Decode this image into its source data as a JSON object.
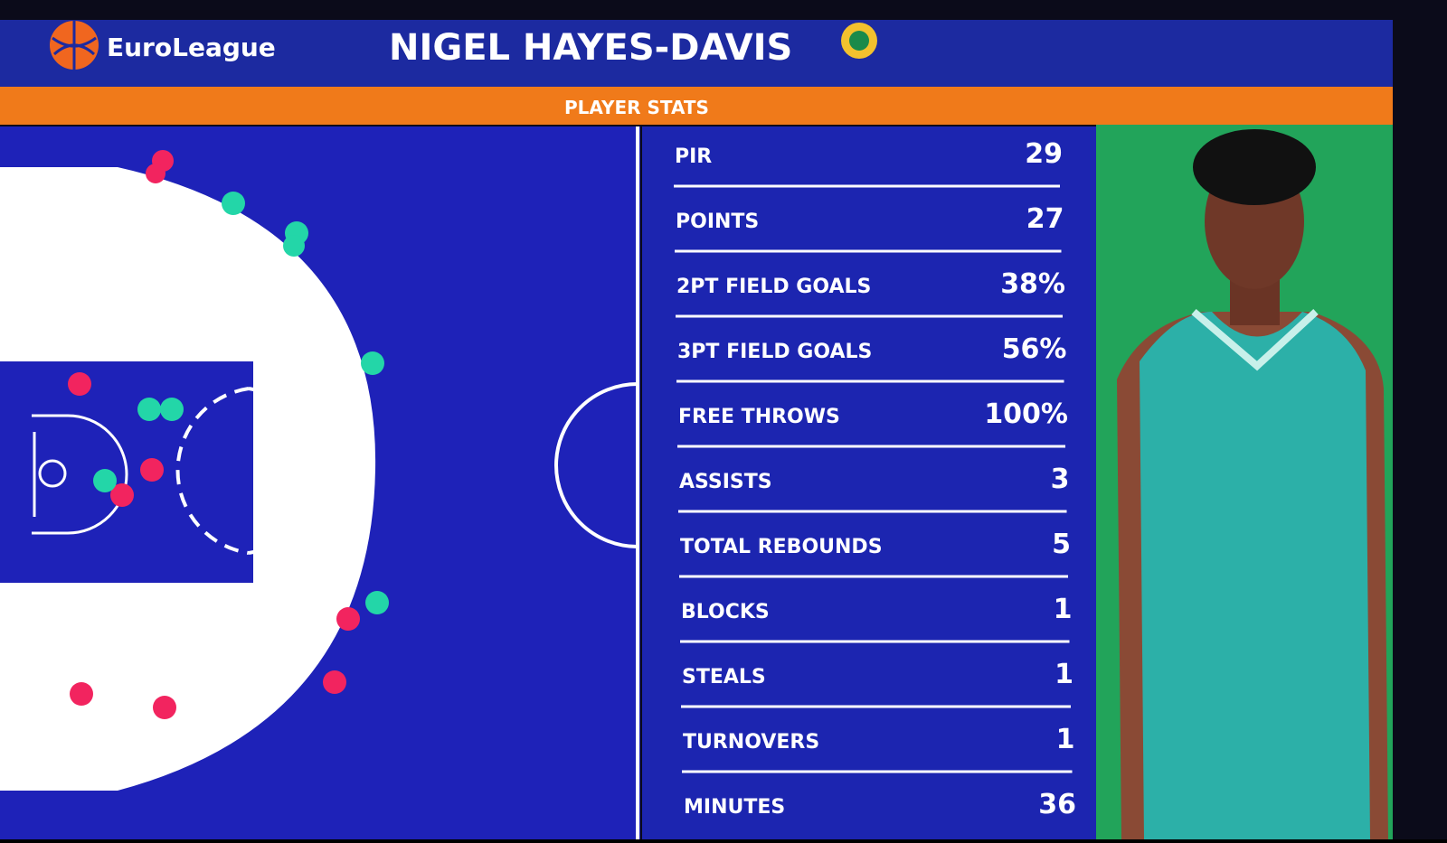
{
  "header": {
    "brand": "EuroLeague",
    "player": "NIGEL HAYES-DAVIS"
  },
  "banner": "PLAYER STATS",
  "stats": [
    {
      "label": "PIR",
      "value": "29"
    },
    {
      "label": "POINTS",
      "value": "27"
    },
    {
      "label": "2PT FIELD GOALS",
      "value": "38%"
    },
    {
      "label": "3PT FIELD GOALS",
      "value": "56%"
    },
    {
      "label": "FREE THROWS",
      "value": "100%"
    },
    {
      "label": "ASSISTS",
      "value": "3"
    },
    {
      "label": "TOTAL REBOUNDS",
      "value": "5"
    },
    {
      "label": "BLOCKS",
      "value": "1"
    },
    {
      "label": "STEALS",
      "value": "1"
    },
    {
      "label": "TURNOVERS",
      "value": "1"
    },
    {
      "label": "MINUTES",
      "value": "36"
    }
  ]
}
